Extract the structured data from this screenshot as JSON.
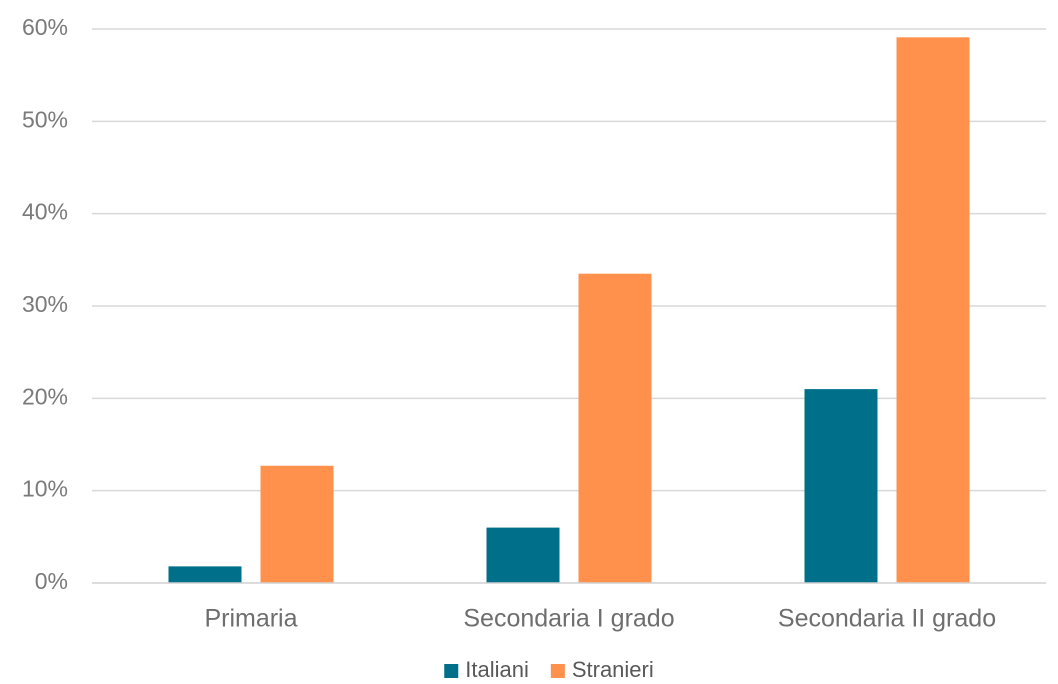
{
  "chart_data": {
    "type": "bar",
    "categories": [
      "Primaria",
      "Secondaria I grado",
      "Secondaria II grado"
    ],
    "series": [
      {
        "name": "Italiani",
        "values": [
          1.8,
          6.0,
          21.0
        ],
        "color": "#006F8A"
      },
      {
        "name": "Stranieri",
        "values": [
          12.7,
          33.5,
          59.1
        ],
        "color": "#FF914D"
      }
    ],
    "ylim": [
      0,
      60
    ],
    "y_ticks": [
      0,
      10,
      20,
      30,
      40,
      50,
      60
    ],
    "y_tick_labels": [
      "0%",
      "10%",
      "20%",
      "30%",
      "40%",
      "50%",
      "60%"
    ],
    "grid": true,
    "legend_position": "bottom",
    "title": "",
    "xlabel": "",
    "ylabel": ""
  }
}
